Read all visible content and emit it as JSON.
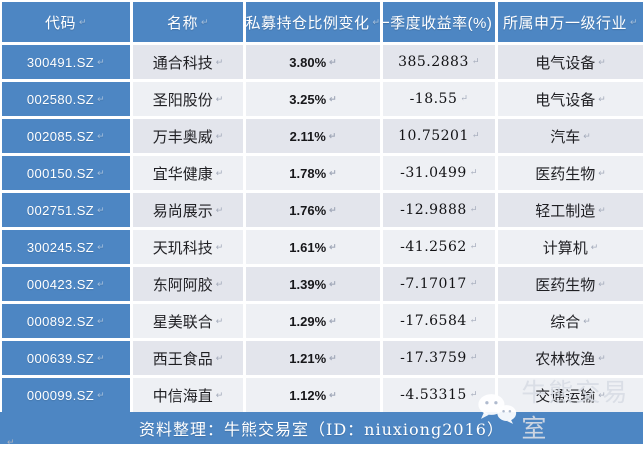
{
  "colors": {
    "primary_blue": "#4d86c3",
    "row_odd": "#e3e5ec",
    "row_even": "#eef0f4",
    "header_text": "#ffffff",
    "body_text": "#1f1f23"
  },
  "table": {
    "columns": [
      {
        "key": "code",
        "label": "代码"
      },
      {
        "key": "name",
        "label": "名称"
      },
      {
        "key": "holding_change",
        "label": "私募持仓比例变化"
      },
      {
        "key": "q1_return",
        "label": "一季度收益率(%)"
      },
      {
        "key": "industry",
        "label": "所属申万一级行业"
      }
    ],
    "rows": [
      {
        "code": "300491.SZ",
        "name": "通合科技",
        "holding_change": "3.80%",
        "q1_return": "385.2883",
        "industry": "电气设备"
      },
      {
        "code": "002580.SZ",
        "name": "圣阳股份",
        "holding_change": "3.25%",
        "q1_return": "-18.55",
        "industry": "电气设备"
      },
      {
        "code": "002085.SZ",
        "name": "万丰奥威",
        "holding_change": "2.11%",
        "q1_return": "10.75201",
        "industry": "汽车"
      },
      {
        "code": "000150.SZ",
        "name": "宜华健康",
        "holding_change": "1.78%",
        "q1_return": "-31.0499",
        "industry": "医药生物"
      },
      {
        "code": "002751.SZ",
        "name": "易尚展示",
        "holding_change": "1.76%",
        "q1_return": "-12.9888",
        "industry": "轻工制造"
      },
      {
        "code": "300245.SZ",
        "name": "天玑科技",
        "holding_change": "1.61%",
        "q1_return": "-41.2562",
        "industry": "计算机"
      },
      {
        "code": "000423.SZ",
        "name": "东阿阿胶",
        "holding_change": "1.39%",
        "q1_return": "-7.17017",
        "industry": "医药生物"
      },
      {
        "code": "000892.SZ",
        "name": "星美联合",
        "holding_change": "1.29%",
        "q1_return": "-17.6584",
        "industry": "综合"
      },
      {
        "code": "000639.SZ",
        "name": "西王食品",
        "holding_change": "1.21%",
        "q1_return": "-17.3759",
        "industry": "农林牧渔"
      },
      {
        "code": "000099.SZ",
        "name": "中信海直",
        "holding_change": "1.12%",
        "q1_return": "-4.53315",
        "industry": "交通运输"
      }
    ]
  },
  "footer": {
    "text": "资料整理：牛熊交易室（ID：niuxiong2016）"
  },
  "watermark": {
    "icon": "wechat-icon",
    "text": "牛熊交易室"
  }
}
